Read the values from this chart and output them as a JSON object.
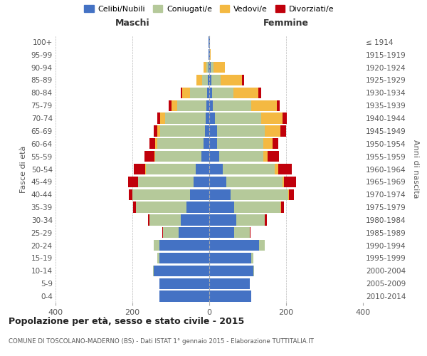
{
  "age_groups": [
    "0-4",
    "5-9",
    "10-14",
    "15-19",
    "20-24",
    "25-29",
    "30-34",
    "35-39",
    "40-44",
    "45-49",
    "50-54",
    "55-59",
    "60-64",
    "65-69",
    "70-74",
    "75-79",
    "80-84",
    "85-89",
    "90-94",
    "95-99",
    "100+"
  ],
  "birth_years": [
    "2010-2014",
    "2005-2009",
    "2000-2004",
    "1995-1999",
    "1990-1994",
    "1985-1989",
    "1980-1984",
    "1975-1979",
    "1970-1974",
    "1965-1969",
    "1960-1964",
    "1955-1959",
    "1950-1954",
    "1945-1949",
    "1940-1944",
    "1935-1939",
    "1930-1934",
    "1925-1929",
    "1920-1924",
    "1915-1919",
    "≤ 1914"
  ],
  "maschi": {
    "celibe": [
      130,
      130,
      145,
      130,
      130,
      80,
      75,
      60,
      50,
      40,
      35,
      20,
      15,
      12,
      10,
      8,
      5,
      3,
      2,
      1,
      1
    ],
    "coniugato": [
      0,
      0,
      2,
      5,
      15,
      40,
      80,
      130,
      150,
      145,
      130,
      120,
      120,
      115,
      105,
      75,
      45,
      15,
      5,
      0,
      0
    ],
    "vedovo": [
      0,
      0,
      0,
      0,
      0,
      0,
      0,
      0,
      0,
      1,
      2,
      3,
      5,
      8,
      12,
      15,
      20,
      15,
      8,
      1,
      0
    ],
    "divorziato": [
      0,
      0,
      0,
      0,
      0,
      3,
      5,
      8,
      10,
      25,
      30,
      25,
      15,
      10,
      8,
      8,
      5,
      0,
      0,
      0,
      0
    ]
  },
  "femmine": {
    "nubile": [
      110,
      105,
      115,
      110,
      130,
      65,
      70,
      65,
      55,
      45,
      35,
      25,
      20,
      20,
      15,
      10,
      8,
      5,
      3,
      1,
      1
    ],
    "coniugata": [
      0,
      0,
      2,
      5,
      15,
      40,
      75,
      120,
      150,
      145,
      135,
      115,
      120,
      125,
      120,
      100,
      55,
      25,
      8,
      0,
      0
    ],
    "vedova": [
      0,
      0,
      0,
      0,
      0,
      0,
      0,
      2,
      3,
      5,
      10,
      12,
      25,
      40,
      55,
      65,
      65,
      55,
      30,
      2,
      1
    ],
    "divorziata": [
      0,
      0,
      0,
      0,
      0,
      3,
      5,
      8,
      12,
      30,
      35,
      30,
      15,
      15,
      12,
      8,
      8,
      5,
      0,
      0,
      0
    ]
  },
  "colors": {
    "celibe": "#4472c4",
    "coniugato": "#b5c99a",
    "vedovo": "#f4b942",
    "divorziato": "#c0000b"
  },
  "title": "Popolazione per età, sesso e stato civile - 2015",
  "subtitle": "COMUNE DI TOSCOLANO-MADERNO (BS) - Dati ISTAT 1° gennaio 2015 - Elaborazione TUTTITALIA.IT",
  "xlabel_left": "Maschi",
  "xlabel_right": "Femmine",
  "ylabel_left": "Fasce di età",
  "ylabel_right": "Anni di nascita",
  "xlim": 400,
  "legend_labels": [
    "Celibi/Nubili",
    "Coniugati/e",
    "Vedovi/e",
    "Divorziati/e"
  ],
  "bg_color": "#ffffff",
  "grid_color": "#bbbbbb"
}
